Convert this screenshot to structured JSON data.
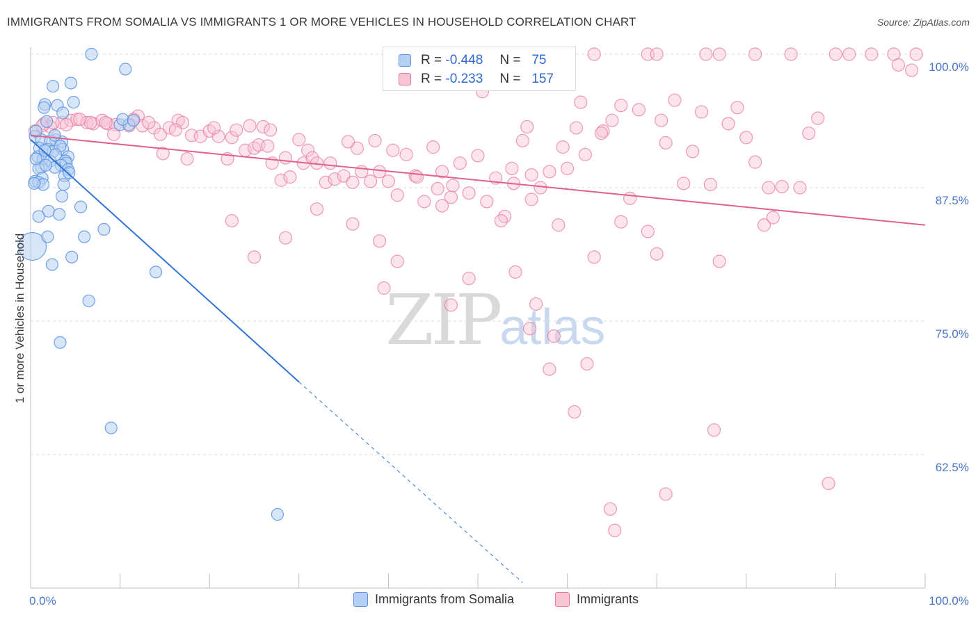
{
  "header": {
    "title": "IMMIGRANTS FROM SOMALIA VS IMMIGRANTS 1 OR MORE VEHICLES IN HOUSEHOLD CORRELATION CHART",
    "source": "Source: ZipAtlas.com"
  },
  "watermark": {
    "main": "ZIP",
    "sub": "atlas"
  },
  "legend": {
    "rows": [
      {
        "r_label": "R =",
        "r_value": "-0.448",
        "n_label": "N =",
        "n_value": "75",
        "color": "#a9c8f0"
      },
      {
        "r_label": "R =",
        "r_value": "-0.233",
        "n_label": "N =",
        "n_value": "157",
        "color": "#f5b4c8"
      }
    ]
  },
  "bottom_legend": {
    "series1": "Immigrants from Somalia",
    "series2": "Immigrants"
  },
  "chart_data": {
    "type": "scatter",
    "ylabel": "1 or more Vehicles in Household",
    "xlabel": "",
    "xlim": [
      0,
      100
    ],
    "ylim": [
      50,
      100
    ],
    "x_tick_labels": [
      "0.0%",
      "100.0%"
    ],
    "y_ticks": [
      100.0,
      87.5,
      75.0,
      62.5
    ],
    "y_tick_labels": [
      "100.0%",
      "87.5%",
      "75.0%",
      "62.5%"
    ],
    "grid": true,
    "colors": {
      "somalia": "#5b93e0",
      "somalia_fill": "#b6d0f3",
      "somalia_line": "#2f74d8",
      "immigrants": "#e9789e",
      "immigrants_fill": "#f7c4d4",
      "immigrants_line": "#e0608f"
    },
    "series": [
      {
        "name": "Immigrants from Somalia",
        "regression": {
          "x": [
            0,
            30
          ],
          "y": [
            92,
            69.3
          ],
          "dash_x": [
            30,
            55
          ],
          "dash_y": [
            69.3,
            50.5
          ]
        },
        "points": [
          [
            0.2,
            82
          ],
          [
            6.8,
            100
          ],
          [
            10.6,
            98.6
          ],
          [
            2.5,
            97
          ],
          [
            4.5,
            97.3
          ],
          [
            1.6,
            95.3
          ],
          [
            3,
            95.2
          ],
          [
            4.8,
            95.5
          ],
          [
            1.5,
            95
          ],
          [
            3.6,
            94.5
          ],
          [
            1.8,
            93.7
          ],
          [
            10,
            93.4
          ],
          [
            11,
            93.4
          ],
          [
            0.5,
            92.3
          ],
          [
            2.8,
            92
          ],
          [
            1.2,
            92
          ],
          [
            2.2,
            91.9
          ],
          [
            3.5,
            91.8
          ],
          [
            1,
            91.2
          ],
          [
            1.9,
            91.1
          ],
          [
            3.6,
            91.1
          ],
          [
            2.5,
            90.9
          ],
          [
            0.8,
            90.4
          ],
          [
            4.2,
            90.4
          ],
          [
            1.4,
            90.2
          ],
          [
            3.9,
            90
          ],
          [
            2.2,
            90
          ],
          [
            4,
            89.8
          ],
          [
            3.4,
            89.6
          ],
          [
            1.2,
            89.4
          ],
          [
            2.7,
            89.4
          ],
          [
            0.9,
            89.3
          ],
          [
            4.2,
            89.2
          ],
          [
            3.8,
            88.6
          ],
          [
            1.3,
            88.4
          ],
          [
            0.5,
            88.1
          ],
          [
            0.9,
            88
          ],
          [
            1.4,
            87.8
          ],
          [
            3.7,
            87.8
          ],
          [
            0.4,
            87.9
          ],
          [
            3.5,
            86.7
          ],
          [
            5.6,
            85.7
          ],
          [
            2,
            85.3
          ],
          [
            3.2,
            85
          ],
          [
            0.9,
            84.8
          ],
          [
            8.2,
            83.6
          ],
          [
            6,
            82.9
          ],
          [
            1.9,
            82.9
          ],
          [
            4.6,
            81
          ],
          [
            2.4,
            80.3
          ],
          [
            14,
            79.6
          ],
          [
            6.5,
            76.9
          ],
          [
            3.3,
            73
          ],
          [
            9,
            65
          ],
          [
            27.6,
            56.9
          ],
          [
            10.3,
            93.9
          ],
          [
            11.5,
            93.8
          ],
          [
            0.6,
            92.8
          ],
          [
            2.7,
            92.4
          ],
          [
            3.3,
            91.4
          ],
          [
            1.6,
            91
          ],
          [
            2.8,
            90.6
          ],
          [
            0.6,
            90.2
          ],
          [
            1.7,
            89.6
          ],
          [
            4.3,
            88.9
          ]
        ]
      },
      {
        "name": "Immigrants",
        "regression": {
          "x": [
            0,
            100
          ],
          "y": [
            92.4,
            84.0
          ]
        },
        "points": [
          [
            0.5,
            92.8
          ],
          [
            1.5,
            93.5
          ],
          [
            2.2,
            93.2
          ],
          [
            3.5,
            93.6
          ],
          [
            4.5,
            93.8
          ],
          [
            5.2,
            93.9
          ],
          [
            6.3,
            93.6
          ],
          [
            7,
            93.5
          ],
          [
            8,
            93.8
          ],
          [
            8.6,
            93.5
          ],
          [
            9.5,
            93.4
          ],
          [
            11,
            93.3
          ],
          [
            12,
            94.2
          ],
          [
            12.5,
            93.3
          ],
          [
            13.8,
            93.1
          ],
          [
            14.5,
            92.5
          ],
          [
            15.5,
            93.1
          ],
          [
            16.5,
            93.8
          ],
          [
            17,
            93.6
          ],
          [
            18,
            92.4
          ],
          [
            19,
            92.3
          ],
          [
            20,
            92.8
          ],
          [
            21,
            92.3
          ],
          [
            22,
            90.2
          ],
          [
            22.5,
            92.2
          ],
          [
            23,
            92.9
          ],
          [
            24,
            91
          ],
          [
            25,
            91.2
          ],
          [
            25.5,
            91.5
          ],
          [
            26,
            93.2
          ],
          [
            26.5,
            91.4
          ],
          [
            27,
            89.8
          ],
          [
            28,
            88.2
          ],
          [
            28.5,
            90.3
          ],
          [
            29,
            88.5
          ],
          [
            30,
            92
          ],
          [
            30.5,
            89.8
          ],
          [
            31,
            91
          ],
          [
            31.5,
            90.3
          ],
          [
            32,
            89.8
          ],
          [
            33,
            88
          ],
          [
            33.5,
            89.8
          ],
          [
            34,
            88.3
          ],
          [
            35,
            88.6
          ],
          [
            36,
            88
          ],
          [
            36.5,
            91.2
          ],
          [
            37,
            89
          ],
          [
            38,
            88.1
          ],
          [
            38.5,
            91.9
          ],
          [
            39,
            89
          ],
          [
            40,
            88.1
          ],
          [
            40.5,
            91
          ],
          [
            41,
            86.8
          ],
          [
            42,
            90.6
          ],
          [
            43,
            88.6
          ],
          [
            44,
            86.2
          ],
          [
            45,
            91.3
          ],
          [
            46,
            89
          ],
          [
            47,
            86.6
          ],
          [
            48,
            89.8
          ],
          [
            49,
            87
          ],
          [
            50,
            90.5
          ],
          [
            51,
            86.2
          ],
          [
            52,
            88.4
          ],
          [
            53,
            84.8
          ],
          [
            54,
            87.9
          ],
          [
            55,
            91.9
          ],
          [
            56,
            86.4
          ],
          [
            57,
            87.5
          ],
          [
            58,
            89
          ],
          [
            59,
            84
          ],
          [
            60,
            89.3
          ],
          [
            61,
            93.1
          ],
          [
            62,
            90.6
          ],
          [
            63,
            81
          ],
          [
            64,
            92.8
          ],
          [
            65,
            93.8
          ],
          [
            66,
            84.3
          ],
          [
            67,
            86.5
          ],
          [
            68,
            94.8
          ],
          [
            69,
            83.4
          ],
          [
            70,
            81.3
          ],
          [
            71,
            91.7
          ],
          [
            72,
            95.7
          ],
          [
            73,
            87.9
          ],
          [
            74,
            90.9
          ],
          [
            75,
            94.6
          ],
          [
            76,
            87.8
          ],
          [
            77,
            80.6
          ],
          [
            78,
            93.5
          ],
          [
            79,
            95
          ],
          [
            80,
            92.2
          ],
          [
            81,
            89.9
          ],
          [
            82,
            84
          ],
          [
            82.5,
            87.5
          ],
          [
            83,
            84.7
          ],
          [
            84,
            87.6
          ],
          [
            86,
            87.5
          ],
          [
            87,
            92.6
          ],
          [
            88,
            94
          ],
          [
            90,
            100
          ],
          [
            91.5,
            100
          ],
          [
            94,
            100
          ],
          [
            96.5,
            100
          ],
          [
            97,
            99
          ],
          [
            99,
            100
          ],
          [
            98.5,
            98.5
          ],
          [
            75.5,
            100
          ],
          [
            77,
            100
          ],
          [
            81,
            100
          ],
          [
            85,
            100
          ],
          [
            69,
            100
          ],
          [
            70,
            100
          ],
          [
            63,
            100
          ],
          [
            60,
            100
          ],
          [
            66,
            95.2
          ],
          [
            70.5,
            93.8
          ],
          [
            61.5,
            95.5
          ],
          [
            55.5,
            93.2
          ],
          [
            50.5,
            96.5
          ],
          [
            46,
            85.8
          ],
          [
            49,
            79
          ],
          [
            41,
            80.6
          ],
          [
            39,
            82.5
          ],
          [
            36,
            84.1
          ],
          [
            32,
            85.5
          ],
          [
            28.5,
            82.8
          ],
          [
            25,
            81
          ],
          [
            22.5,
            84.4
          ],
          [
            17.5,
            90.2
          ],
          [
            14.8,
            90.7
          ],
          [
            9.3,
            92.5
          ],
          [
            6.7,
            93.6
          ],
          [
            5.5,
            93.9
          ],
          [
            4,
            93.4
          ],
          [
            2.5,
            93.6
          ],
          [
            1.3,
            93.3
          ],
          [
            8.4,
            93.6
          ],
          [
            20.5,
            93.1
          ],
          [
            16.2,
            92.9
          ],
          [
            13.2,
            93.6
          ],
          [
            11.5,
            93.9
          ],
          [
            24.5,
            93.3
          ],
          [
            26.8,
            92.9
          ],
          [
            35.5,
            91.8
          ],
          [
            43.2,
            88.5
          ],
          [
            47.2,
            87.7
          ],
          [
            52.6,
            84.4
          ],
          [
            54.2,
            79.6
          ],
          [
            56.5,
            76.6
          ],
          [
            58.5,
            73.6
          ],
          [
            60.8,
            66.5
          ],
          [
            62.2,
            71
          ],
          [
            55.8,
            74.3
          ],
          [
            58,
            70.5
          ],
          [
            64.8,
            57.4
          ],
          [
            65.3,
            55.4
          ],
          [
            71,
            58.8
          ],
          [
            76.4,
            64.8
          ],
          [
            89.2,
            59.8
          ],
          [
            47,
            76.5
          ],
          [
            39.5,
            78.1
          ],
          [
            45.5,
            87.4
          ],
          [
            53.8,
            89.3
          ],
          [
            56,
            88.7
          ],
          [
            59.5,
            91.3
          ],
          [
            63.8,
            92.6
          ]
        ]
      }
    ]
  }
}
